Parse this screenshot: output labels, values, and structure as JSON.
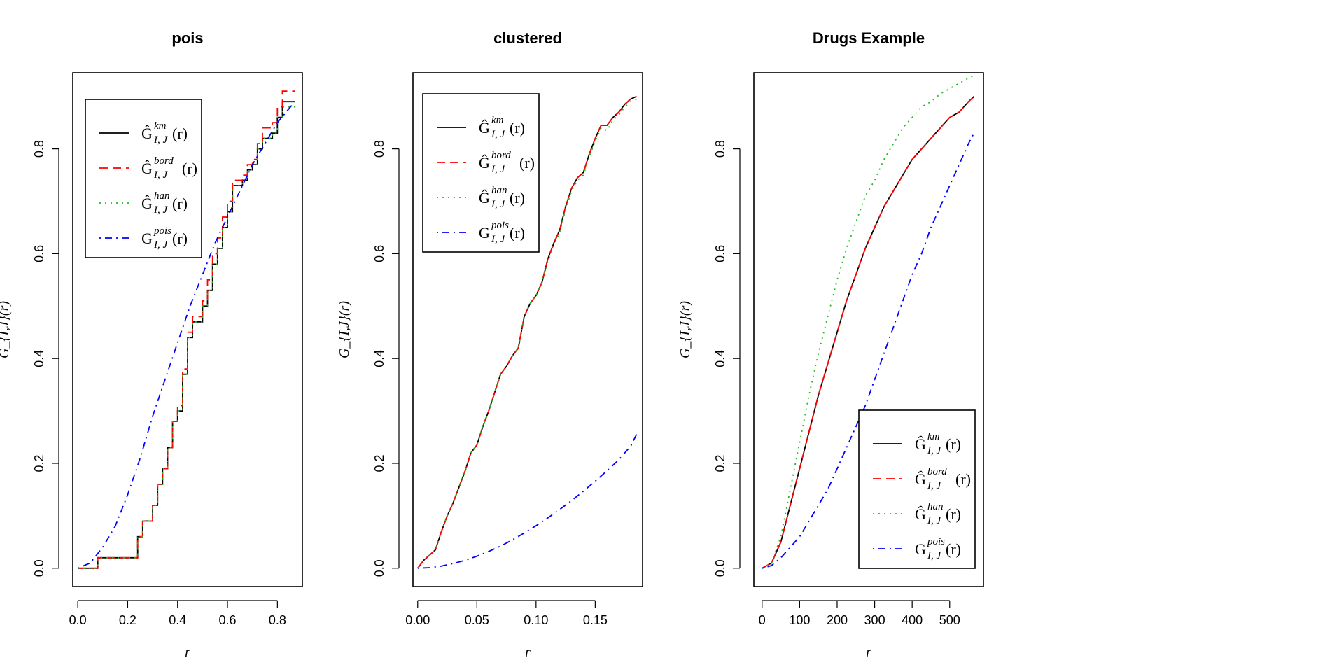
{
  "chart_data": [
    {
      "type": "line",
      "title": "pois",
      "xlabel": "r",
      "ylabel": "G_{I,J}(r)",
      "xlim": [
        -0.02,
        0.9
      ],
      "ylim": [
        -0.035,
        0.945
      ],
      "xticks": [
        0.0,
        0.2,
        0.4,
        0.6,
        0.8
      ],
      "xtick_labels": [
        "0.0",
        "0.2",
        "0.4",
        "0.6",
        "0.8"
      ],
      "yticks": [
        0.0,
        0.2,
        0.4,
        0.6,
        0.8
      ],
      "ytick_labels": [
        "0.0",
        "0.2",
        "0.4",
        "0.6",
        "0.8"
      ],
      "legend_position": "top-left",
      "series": [
        {
          "name": "km",
          "color": "#000000",
          "style": "solid",
          "step": true,
          "x": [
            0.0,
            0.08,
            0.22,
            0.24,
            0.26,
            0.3,
            0.32,
            0.34,
            0.36,
            0.38,
            0.4,
            0.42,
            0.44,
            0.46,
            0.5,
            0.52,
            0.54,
            0.56,
            0.58,
            0.6,
            0.62,
            0.66,
            0.68,
            0.7,
            0.72,
            0.74,
            0.78,
            0.8,
            0.82,
            0.87
          ],
          "y": [
            0.0,
            0.02,
            0.02,
            0.06,
            0.09,
            0.12,
            0.16,
            0.19,
            0.23,
            0.28,
            0.3,
            0.37,
            0.44,
            0.47,
            0.5,
            0.53,
            0.58,
            0.61,
            0.65,
            0.68,
            0.73,
            0.74,
            0.76,
            0.77,
            0.8,
            0.82,
            0.83,
            0.86,
            0.89,
            0.89
          ]
        },
        {
          "name": "bord",
          "color": "#ff0000",
          "style": "dashed",
          "step": true,
          "x": [
            0.0,
            0.08,
            0.22,
            0.24,
            0.26,
            0.3,
            0.32,
            0.34,
            0.36,
            0.38,
            0.4,
            0.42,
            0.44,
            0.46,
            0.5,
            0.52,
            0.54,
            0.56,
            0.58,
            0.6,
            0.62,
            0.66,
            0.68,
            0.7,
            0.72,
            0.74,
            0.78,
            0.8,
            0.82,
            0.87
          ],
          "y": [
            0.0,
            0.02,
            0.02,
            0.06,
            0.09,
            0.12,
            0.16,
            0.19,
            0.23,
            0.28,
            0.31,
            0.38,
            0.45,
            0.48,
            0.51,
            0.55,
            0.6,
            0.63,
            0.67,
            0.7,
            0.74,
            0.75,
            0.77,
            0.78,
            0.81,
            0.84,
            0.85,
            0.88,
            0.91,
            0.91
          ]
        },
        {
          "name": "han",
          "color": "#22bb22",
          "style": "dotted",
          "step": true,
          "x": [
            0.0,
            0.08,
            0.22,
            0.24,
            0.26,
            0.3,
            0.32,
            0.34,
            0.36,
            0.38,
            0.4,
            0.42,
            0.44,
            0.46,
            0.5,
            0.52,
            0.54,
            0.56,
            0.58,
            0.6,
            0.62,
            0.66,
            0.68,
            0.7,
            0.72,
            0.74,
            0.78,
            0.8,
            0.82,
            0.87
          ],
          "y": [
            0.0,
            0.02,
            0.02,
            0.06,
            0.09,
            0.12,
            0.16,
            0.19,
            0.23,
            0.28,
            0.3,
            0.37,
            0.44,
            0.47,
            0.5,
            0.53,
            0.58,
            0.61,
            0.65,
            0.68,
            0.73,
            0.74,
            0.76,
            0.77,
            0.8,
            0.82,
            0.83,
            0.86,
            0.88,
            0.89
          ]
        },
        {
          "name": "pois",
          "color": "#0000ff",
          "style": "dotdash",
          "step": false,
          "x": [
            0.0,
            0.05,
            0.1,
            0.15,
            0.2,
            0.25,
            0.3,
            0.35,
            0.4,
            0.45,
            0.5,
            0.55,
            0.6,
            0.65,
            0.7,
            0.75,
            0.8,
            0.87
          ],
          "y": [
            0.0,
            0.01,
            0.04,
            0.08,
            0.14,
            0.21,
            0.29,
            0.36,
            0.43,
            0.5,
            0.56,
            0.62,
            0.67,
            0.72,
            0.77,
            0.81,
            0.85,
            0.89
          ]
        }
      ]
    },
    {
      "type": "line",
      "title": "clustered",
      "xlabel": "r",
      "ylabel": "G_{I,J}(r)",
      "xlim": [
        -0.004,
        0.19
      ],
      "ylim": [
        -0.035,
        0.945
      ],
      "xticks": [
        0.0,
        0.05,
        0.1,
        0.15
      ],
      "xtick_labels": [
        "0.00",
        "0.05",
        "0.10",
        "0.15"
      ],
      "yticks": [
        0.0,
        0.2,
        0.4,
        0.6,
        0.8
      ],
      "ytick_labels": [
        "0.0",
        "0.2",
        "0.4",
        "0.6",
        "0.8"
      ],
      "legend_position": "top-left",
      "series": [
        {
          "name": "km",
          "color": "#000000",
          "style": "solid",
          "step": false,
          "x": [
            0.0,
            0.005,
            0.01,
            0.015,
            0.02,
            0.025,
            0.03,
            0.035,
            0.04,
            0.045,
            0.05,
            0.055,
            0.06,
            0.065,
            0.07,
            0.075,
            0.08,
            0.085,
            0.09,
            0.095,
            0.1,
            0.105,
            0.11,
            0.115,
            0.12,
            0.125,
            0.13,
            0.135,
            0.14,
            0.145,
            0.15,
            0.155,
            0.16,
            0.165,
            0.17,
            0.175,
            0.18,
            0.185
          ],
          "y": [
            0.0,
            0.015,
            0.025,
            0.035,
            0.07,
            0.1,
            0.125,
            0.155,
            0.185,
            0.22,
            0.235,
            0.27,
            0.3,
            0.335,
            0.37,
            0.385,
            0.405,
            0.42,
            0.48,
            0.505,
            0.52,
            0.545,
            0.59,
            0.62,
            0.645,
            0.69,
            0.725,
            0.745,
            0.755,
            0.79,
            0.82,
            0.845,
            0.845,
            0.86,
            0.87,
            0.885,
            0.895,
            0.9
          ]
        },
        {
          "name": "bord",
          "color": "#ff0000",
          "style": "dashed",
          "step": false,
          "x": [
            0.0,
            0.005,
            0.01,
            0.015,
            0.02,
            0.025,
            0.03,
            0.035,
            0.04,
            0.045,
            0.05,
            0.055,
            0.06,
            0.065,
            0.07,
            0.075,
            0.08,
            0.085,
            0.09,
            0.095,
            0.1,
            0.105,
            0.11,
            0.115,
            0.12,
            0.125,
            0.13,
            0.135,
            0.14,
            0.145,
            0.15,
            0.155,
            0.16,
            0.165,
            0.17,
            0.175,
            0.18,
            0.185
          ],
          "y": [
            0.0,
            0.015,
            0.025,
            0.035,
            0.07,
            0.1,
            0.125,
            0.155,
            0.185,
            0.22,
            0.235,
            0.27,
            0.3,
            0.335,
            0.37,
            0.385,
            0.405,
            0.42,
            0.48,
            0.505,
            0.52,
            0.545,
            0.59,
            0.62,
            0.645,
            0.69,
            0.725,
            0.745,
            0.755,
            0.79,
            0.82,
            0.845,
            0.845,
            0.86,
            0.87,
            0.885,
            0.895,
            0.9
          ]
        },
        {
          "name": "han",
          "color": "#22bb22",
          "style": "dotted",
          "step": false,
          "x": [
            0.0,
            0.005,
            0.01,
            0.015,
            0.02,
            0.025,
            0.03,
            0.035,
            0.04,
            0.045,
            0.05,
            0.055,
            0.06,
            0.065,
            0.07,
            0.075,
            0.08,
            0.085,
            0.09,
            0.095,
            0.1,
            0.105,
            0.11,
            0.115,
            0.12,
            0.125,
            0.13,
            0.135,
            0.14,
            0.145,
            0.15,
            0.155,
            0.16,
            0.165,
            0.17,
            0.175,
            0.18,
            0.185
          ],
          "y": [
            0.0,
            0.015,
            0.025,
            0.035,
            0.07,
            0.1,
            0.125,
            0.155,
            0.185,
            0.22,
            0.235,
            0.27,
            0.3,
            0.335,
            0.37,
            0.385,
            0.405,
            0.42,
            0.48,
            0.505,
            0.52,
            0.545,
            0.585,
            0.615,
            0.64,
            0.685,
            0.72,
            0.74,
            0.75,
            0.785,
            0.815,
            0.84,
            0.835,
            0.855,
            0.865,
            0.88,
            0.89,
            0.895
          ]
        },
        {
          "name": "pois",
          "color": "#0000ff",
          "style": "dotdash",
          "step": false,
          "x": [
            0.0,
            0.01,
            0.02,
            0.03,
            0.04,
            0.05,
            0.06,
            0.07,
            0.08,
            0.09,
            0.1,
            0.11,
            0.12,
            0.13,
            0.14,
            0.15,
            0.16,
            0.17,
            0.18,
            0.186
          ],
          "y": [
            0.0,
            0.001,
            0.004,
            0.009,
            0.015,
            0.023,
            0.032,
            0.042,
            0.054,
            0.067,
            0.081,
            0.096,
            0.112,
            0.129,
            0.147,
            0.166,
            0.186,
            0.207,
            0.233,
            0.26
          ]
        }
      ]
    },
    {
      "type": "line",
      "title": "Drugs Example",
      "xlabel": "r",
      "ylabel": "G_{I,J}(r)",
      "xlim": [
        -22,
        590
      ],
      "ylim": [
        -0.035,
        0.945
      ],
      "xticks": [
        0,
        100,
        200,
        300,
        400,
        500
      ],
      "xtick_labels": [
        "0",
        "100",
        "200",
        "300",
        "400",
        "500"
      ],
      "yticks": [
        0.0,
        0.2,
        0.4,
        0.6,
        0.8
      ],
      "ytick_labels": [
        "0.0",
        "0.2",
        "0.4",
        "0.6",
        "0.8"
      ],
      "legend_position": "bottom-right",
      "series": [
        {
          "name": "km",
          "color": "#000000",
          "style": "solid",
          "step": false,
          "x": [
            0,
            25,
            50,
            75,
            100,
            125,
            150,
            175,
            200,
            225,
            250,
            275,
            300,
            325,
            350,
            375,
            400,
            425,
            450,
            475,
            500,
            525,
            550,
            565
          ],
          "y": [
            0.0,
            0.01,
            0.05,
            0.12,
            0.19,
            0.26,
            0.33,
            0.39,
            0.45,
            0.51,
            0.56,
            0.61,
            0.65,
            0.69,
            0.72,
            0.75,
            0.78,
            0.8,
            0.82,
            0.84,
            0.86,
            0.87,
            0.89,
            0.9
          ]
        },
        {
          "name": "bord",
          "color": "#ff0000",
          "style": "dashed",
          "step": false,
          "x": [
            0,
            25,
            50,
            75,
            100,
            125,
            150,
            175,
            200,
            225,
            250,
            275,
            300,
            325,
            350,
            375,
            400,
            425,
            450,
            475,
            500,
            525,
            550,
            565
          ],
          "y": [
            0.0,
            0.01,
            0.05,
            0.12,
            0.19,
            0.26,
            0.33,
            0.39,
            0.45,
            0.51,
            0.56,
            0.61,
            0.65,
            0.69,
            0.72,
            0.75,
            0.78,
            0.8,
            0.82,
            0.84,
            0.86,
            0.87,
            0.89,
            0.9
          ]
        },
        {
          "name": "han",
          "color": "#22bb22",
          "style": "dotted",
          "step": false,
          "x": [
            0,
            25,
            50,
            75,
            100,
            125,
            150,
            175,
            200,
            225,
            250,
            275,
            300,
            325,
            350,
            375,
            400,
            425,
            450,
            475,
            500,
            525,
            550,
            565
          ],
          "y": [
            0.0,
            0.01,
            0.06,
            0.15,
            0.24,
            0.33,
            0.41,
            0.48,
            0.55,
            0.61,
            0.66,
            0.71,
            0.74,
            0.78,
            0.81,
            0.84,
            0.86,
            0.88,
            0.89,
            0.905,
            0.915,
            0.925,
            0.935,
            0.94
          ]
        },
        {
          "name": "pois",
          "color": "#0000ff",
          "style": "dotdash",
          "step": false,
          "x": [
            0,
            25,
            50,
            75,
            100,
            125,
            150,
            175,
            200,
            225,
            250,
            275,
            300,
            325,
            350,
            375,
            400,
            425,
            450,
            475,
            500,
            525,
            550,
            565
          ],
          "y": [
            0.0,
            0.005,
            0.02,
            0.04,
            0.06,
            0.09,
            0.12,
            0.15,
            0.19,
            0.23,
            0.27,
            0.31,
            0.36,
            0.41,
            0.46,
            0.51,
            0.56,
            0.6,
            0.65,
            0.69,
            0.73,
            0.77,
            0.81,
            0.83
          ]
        }
      ]
    }
  ]
}
